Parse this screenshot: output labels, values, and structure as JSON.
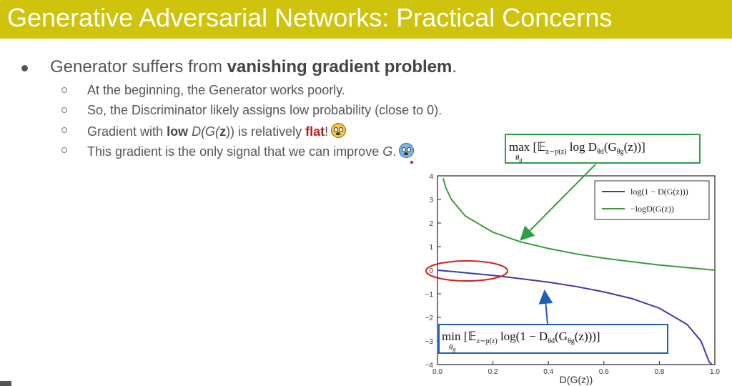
{
  "title": "Generative Adversarial Networks: Practical Concerns",
  "main_bullet": {
    "prefix": "Generator suffers from ",
    "bold": "vanishing gradient problem",
    "suffix": "."
  },
  "sub_bullets": [
    {
      "text": "At the beginning, the Generator works poorly."
    },
    {
      "text": "So, the Discriminator likely assigns low probability (close to 0)."
    },
    {
      "prefix": "Gradient with ",
      "bold": "low",
      "middle": " D(G(",
      "bold2": "z",
      "middle2": ")) is relatively ",
      "flat": "flat",
      "suffix": "!",
      "emoji": "fearful-face-icon"
    },
    {
      "prefix": "This gradient is the only signal that we can improve ",
      "italic": "G",
      "suffix": ".",
      "emoji": "crying-face-icon"
    }
  ],
  "colors": {
    "title_bar": "#cfc30c",
    "series_log1mD": "#3a3aa8",
    "series_neglogD": "#3a9a3a",
    "max_box": "#2ea043",
    "min_box": "#2060b0",
    "ellipse": "#d02020",
    "emphasis_red": "#b71c1c"
  },
  "max_formula": {
    "head": "max",
    "sub": "θ",
    "subsub": "g",
    "body": "[𝔼",
    "body_sub": "z∼p(z)",
    "body2": " log D",
    "body2_sub": "θd",
    "body3": "(G",
    "body3_sub": "θg",
    "body4": "(z))]"
  },
  "min_formula": {
    "head": "min",
    "sub": "θ",
    "subsub": "g",
    "body": "[𝔼",
    "body_sub": "z∼p(z)",
    "body2": " log(1 − D",
    "body2_sub": "θd",
    "body3": "(G",
    "body3_sub": "θg",
    "body4": "(z)))]"
  },
  "chart_data": {
    "type": "line",
    "xlabel": "D(G(z))",
    "xlim": [
      0.0,
      1.0
    ],
    "ylim": [
      -4,
      4
    ],
    "x_ticks": [
      "0.0",
      "0.2",
      "0.4",
      "0.6",
      "0.8",
      "1.0"
    ],
    "y_ticks": [
      "4",
      "3",
      "2",
      "1",
      "0",
      "−1",
      "−2",
      "−3",
      "−4"
    ],
    "legend_position": "top-right",
    "series": [
      {
        "name": "log(1 − D(G(z)))",
        "x": [
          0.0,
          0.05,
          0.1,
          0.2,
          0.3,
          0.4,
          0.5,
          0.6,
          0.7,
          0.8,
          0.9,
          0.95,
          0.98,
          0.99
        ],
        "y": [
          0.0,
          -0.05,
          -0.11,
          -0.22,
          -0.36,
          -0.51,
          -0.69,
          -0.92,
          -1.2,
          -1.61,
          -2.3,
          -3.0,
          -3.9,
          -4.0
        ]
      },
      {
        "name": "−logD(G(z))",
        "x": [
          0.02,
          0.03,
          0.05,
          0.1,
          0.2,
          0.3,
          0.4,
          0.5,
          0.6,
          0.7,
          0.8,
          0.9,
          1.0
        ],
        "y": [
          3.9,
          3.5,
          3.0,
          2.3,
          1.61,
          1.2,
          0.92,
          0.69,
          0.51,
          0.36,
          0.22,
          0.11,
          0.0
        ]
      }
    ]
  }
}
